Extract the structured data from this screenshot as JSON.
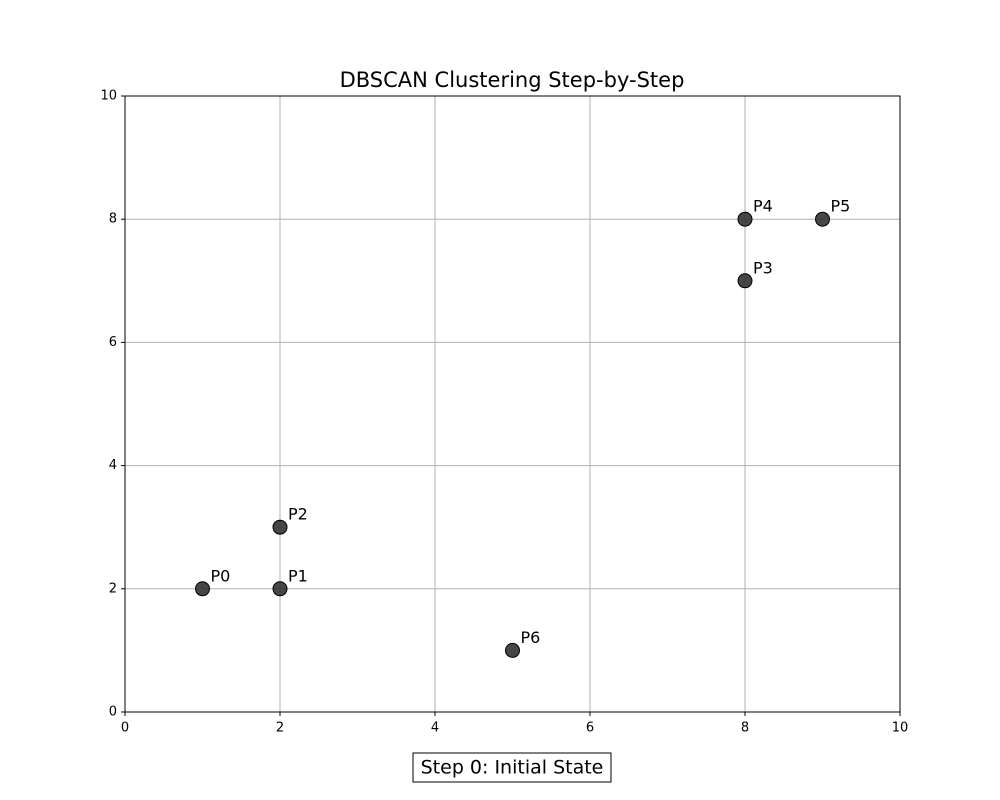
{
  "chart_data": {
    "type": "scatter",
    "title": "DBSCAN Clustering Step-by-Step",
    "annotation": "Step 0: Initial State",
    "x": [
      1,
      2,
      2,
      8,
      8,
      9,
      5
    ],
    "series": [
      {
        "color": "#333333",
        "values": [
          2,
          2,
          3,
          7,
          8,
          8,
          1
        ],
        "point_labels": [
          "P0",
          "P1",
          "P2",
          "P3",
          "P4",
          "P5",
          "P6"
        ]
      }
    ],
    "xlim": [
      0,
      10
    ],
    "ylim": [
      0,
      10
    ],
    "xticks": [
      0,
      2,
      4,
      6,
      8,
      10
    ],
    "yticks": [
      0,
      2,
      4,
      6,
      8,
      10
    ],
    "grid": true
  }
}
